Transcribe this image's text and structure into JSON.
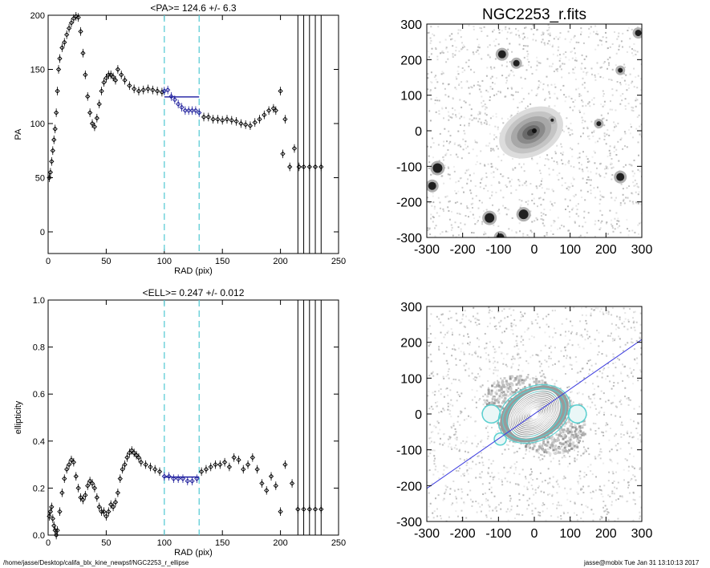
{
  "chart_data": [
    {
      "type": "scatter",
      "title": "<PA>= 124.6 +/-   6.3",
      "xlabel": "RAD (pix)",
      "ylabel": "PA",
      "xlim": [
        0,
        250
      ],
      "ylim": [
        -20,
        200
      ],
      "xticks": [
        0,
        50,
        100,
        150,
        200,
        250
      ],
      "yticks": [
        0,
        50,
        100,
        150,
        200
      ],
      "vlines_dashed": [
        100,
        130
      ],
      "mean_value": 124.6,
      "mean_range": [
        100,
        130
      ],
      "highlight_range": [
        100,
        130
      ],
      "vertical_lines": [
        215,
        220,
        225,
        230,
        235
      ],
      "series": [
        {
          "x": [
            1,
            2,
            3,
            4,
            5,
            6,
            7,
            8,
            9,
            10,
            12,
            14,
            16,
            18,
            20,
            22,
            24,
            26,
            28,
            30,
            32,
            34,
            36,
            38,
            40,
            42,
            44,
            46,
            48,
            50,
            52,
            54,
            56,
            58,
            60,
            63,
            66,
            70,
            74,
            78,
            82,
            86,
            90,
            94,
            98,
            100,
            103,
            106,
            109,
            112,
            115,
            118,
            121,
            124,
            127,
            130,
            134,
            138,
            142,
            146,
            150,
            154,
            158,
            162,
            166,
            170,
            174,
            178,
            182,
            186,
            190,
            194,
            196,
            200,
            202,
            204,
            208,
            212,
            216,
            220,
            225,
            230,
            235
          ],
          "y": [
            50,
            55,
            65,
            75,
            85,
            95,
            110,
            130,
            150,
            160,
            170,
            175,
            182,
            188,
            193,
            197,
            199,
            198,
            185,
            165,
            145,
            125,
            110,
            100,
            97,
            105,
            118,
            130,
            138,
            142,
            145,
            145,
            143,
            140,
            150,
            145,
            140,
            135,
            132,
            130,
            131,
            132,
            131,
            130,
            129,
            130,
            131,
            125,
            122,
            118,
            115,
            112,
            112,
            112,
            112,
            110,
            106,
            106,
            104,
            104,
            103,
            104,
            103,
            102,
            100,
            99,
            98,
            101,
            104,
            108,
            112,
            114,
            112,
            130,
            72,
            104,
            60,
            77,
            60,
            60,
            60,
            60,
            60
          ]
        }
      ]
    },
    {
      "type": "scatter",
      "title": "<ELL>= 0.247 +/-  0.012",
      "xlabel": "RAD (pix)",
      "ylabel": "ellipticity",
      "xlim": [
        0,
        250
      ],
      "ylim": [
        0,
        1
      ],
      "xticks": [
        0,
        50,
        100,
        150,
        200,
        250
      ],
      "yticks": [
        0.0,
        0.2,
        0.4,
        0.6,
        0.8,
        1.0
      ],
      "vlines_dashed": [
        100,
        130
      ],
      "mean_value": 0.247,
      "mean_range": [
        100,
        130
      ],
      "highlight_range": [
        100,
        130
      ],
      "vertical_lines": [
        215,
        220,
        225,
        230,
        235
      ],
      "series": [
        {
          "x": [
            1,
            2,
            3,
            4,
            5,
            6,
            7,
            8,
            10,
            12,
            14,
            16,
            18,
            20,
            22,
            24,
            26,
            28,
            30,
            32,
            34,
            36,
            38,
            40,
            42,
            44,
            46,
            48,
            50,
            52,
            54,
            56,
            58,
            60,
            62,
            64,
            66,
            68,
            70,
            72,
            74,
            76,
            78,
            80,
            84,
            88,
            92,
            96,
            100,
            104,
            108,
            112,
            116,
            120,
            124,
            128,
            132,
            136,
            140,
            144,
            148,
            152,
            156,
            160,
            164,
            168,
            172,
            176,
            180,
            184,
            188,
            192,
            196,
            200,
            204,
            210,
            215,
            220,
            225,
            230,
            235
          ],
          "y": [
            0.08,
            0.1,
            0.12,
            0.07,
            0.04,
            0.02,
            0.0,
            0.02,
            0.1,
            0.18,
            0.24,
            0.28,
            0.3,
            0.32,
            0.31,
            0.25,
            0.2,
            0.16,
            0.15,
            0.17,
            0.21,
            0.23,
            0.22,
            0.2,
            0.16,
            0.12,
            0.1,
            0.1,
            0.08,
            0.1,
            0.13,
            0.12,
            0.14,
            0.18,
            0.24,
            0.28,
            0.3,
            0.33,
            0.35,
            0.36,
            0.35,
            0.34,
            0.33,
            0.31,
            0.3,
            0.29,
            0.28,
            0.27,
            0.25,
            0.25,
            0.24,
            0.24,
            0.24,
            0.23,
            0.23,
            0.24,
            0.27,
            0.28,
            0.29,
            0.3,
            0.3,
            0.31,
            0.29,
            0.33,
            0.32,
            0.28,
            0.3,
            0.33,
            0.28,
            0.22,
            0.19,
            0.25,
            0.21,
            0.1,
            0.3,
            0.22,
            0.11,
            0.11,
            0.11,
            0.11,
            0.11
          ]
        }
      ]
    },
    {
      "type": "heatmap",
      "title": "NGC2253_r.fits",
      "xlim": [
        -300,
        300
      ],
      "ylim": [
        -300,
        300
      ],
      "xticks": [
        -300,
        -200,
        -100,
        0,
        100,
        200,
        300
      ],
      "yticks": [
        -300,
        -200,
        -100,
        0,
        100,
        200,
        300
      ],
      "colors": {
        "galaxy": "#505050",
        "stars": "#202020"
      }
    },
    {
      "type": "heatmap",
      "title": "",
      "xlim": [
        -300,
        300
      ],
      "ylim": [
        -300,
        300
      ],
      "xticks": [
        -300,
        -200,
        -100,
        0,
        100,
        200,
        300
      ],
      "yticks": [
        -300,
        -200,
        -100,
        0,
        100,
        200,
        300
      ],
      "line_slope": 0.693,
      "colors": {
        "contours": "#ffffff",
        "mask": "#5ad0d0",
        "line": "#3a3adf"
      }
    }
  ],
  "footer": {
    "path": "/home/jasse/Desktop/califa_blx_kine_newpsf/NGC2253_r_ellipse",
    "user": "jasse@mobix  Tue Jan 31 13:10:13 2017"
  }
}
